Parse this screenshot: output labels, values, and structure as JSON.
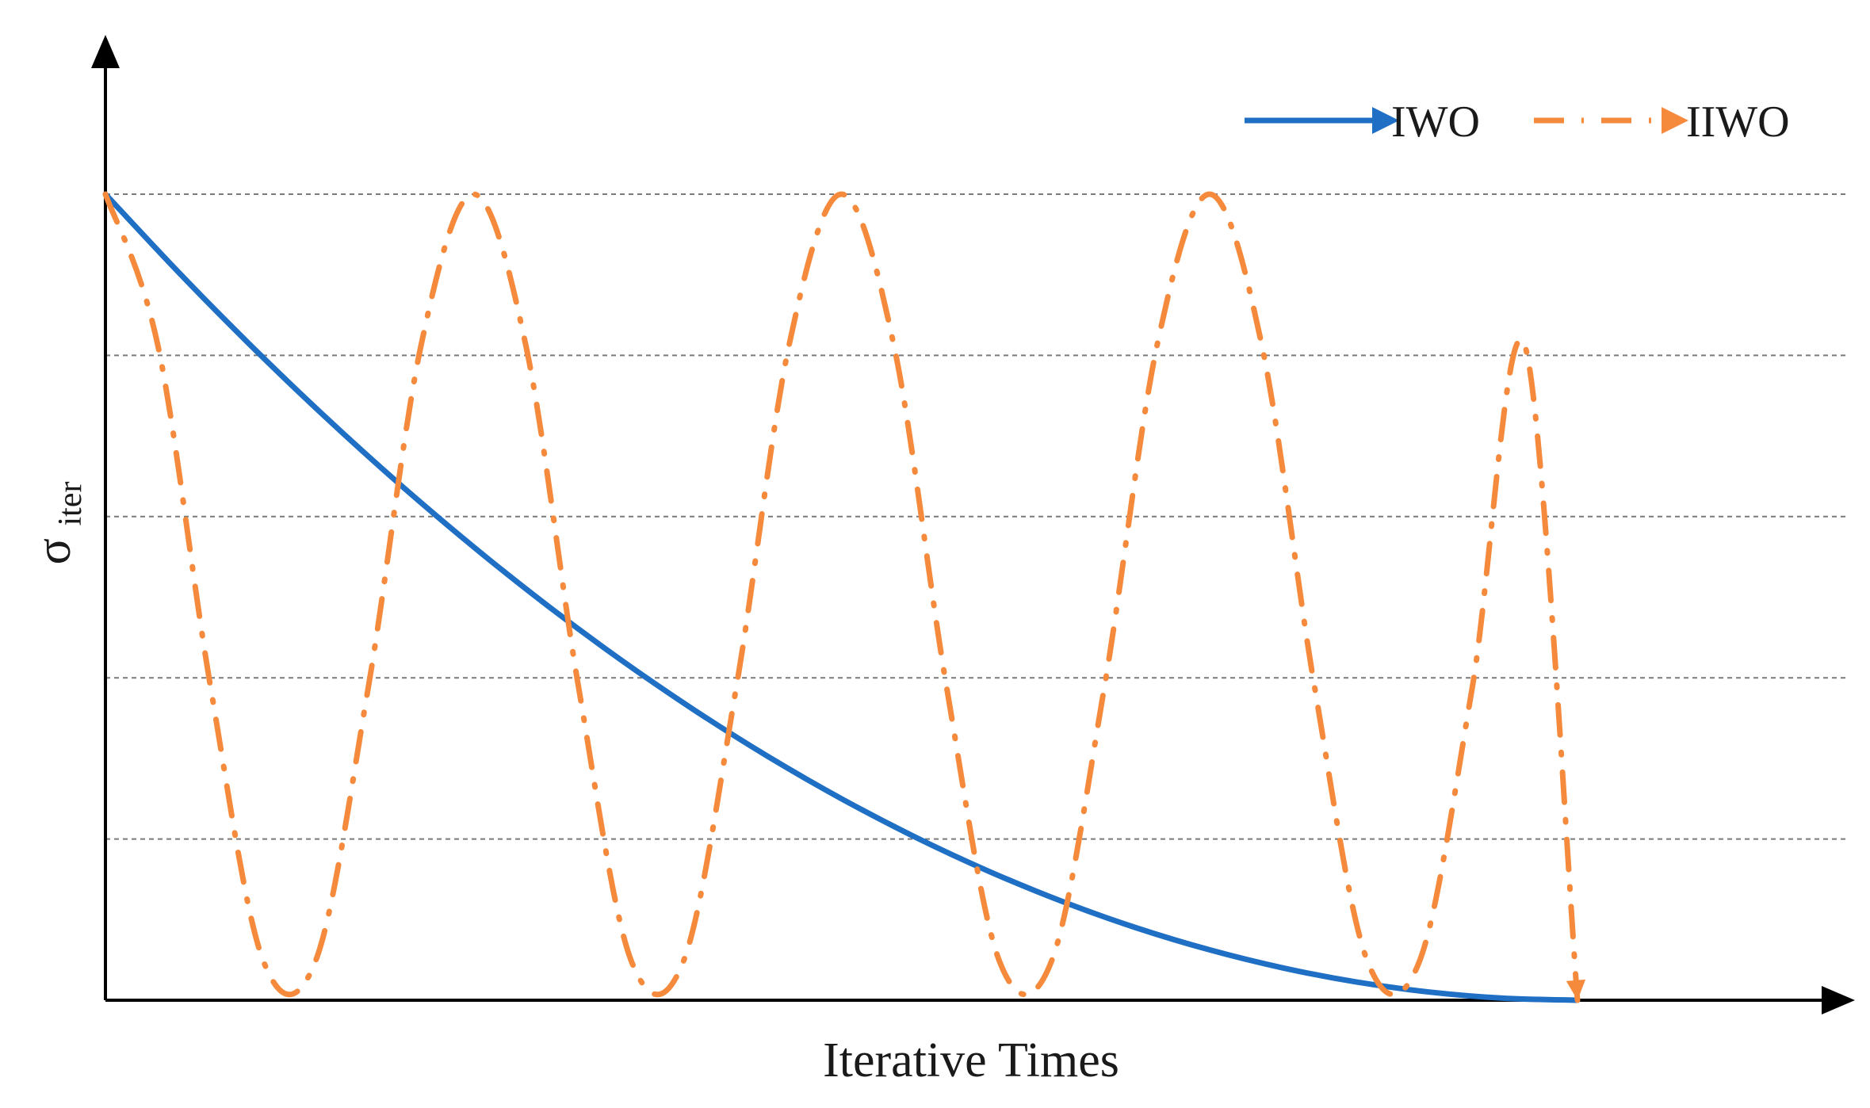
{
  "chart_data": {
    "type": "line",
    "title": "",
    "xlabel": "Iterative Times",
    "ylabel_main": "σ",
    "ylabel_sub": "iter",
    "xlim": [
      0,
      1
    ],
    "ylim": [
      0,
      1
    ],
    "grid": "horizontal dashed",
    "legend_position": "top-right",
    "series": [
      {
        "name": "IWO",
        "color": "#1f6fc4",
        "style": "solid",
        "x": [
          0,
          0.05,
          0.1,
          0.15,
          0.2,
          0.25,
          0.3,
          0.35,
          0.4,
          0.45,
          0.5,
          0.55,
          0.6,
          0.65,
          0.7,
          0.75,
          0.8,
          0.85,
          0.9,
          0.95,
          1.0
        ],
        "y": [
          1.0,
          0.9025,
          0.81,
          0.7225,
          0.64,
          0.5625,
          0.49,
          0.4225,
          0.36,
          0.3025,
          0.25,
          0.2025,
          0.16,
          0.1225,
          0.09,
          0.0625,
          0.04,
          0.0225,
          0.01,
          0.0025,
          0.0
        ]
      },
      {
        "name": "IIWO",
        "color": "#f58a3c",
        "style": "dash-dot",
        "x": [
          0,
          0.0357,
          0.0714,
          0.1071,
          0.1429,
          0.1786,
          0.2143,
          0.25,
          0.2857,
          0.3214,
          0.3571,
          0.3929,
          0.4286,
          0.4643,
          0.5,
          0.5357,
          0.5714,
          0.6071,
          0.6429,
          0.6786,
          0.7143,
          0.75,
          0.7857,
          0.8214,
          0.8571,
          0.8929,
          0.9286,
          0.9643,
          1.0
        ],
        "y": [
          1.0,
          0.8117,
          0.3887,
          0.0495,
          0.0495,
          0.3887,
          0.8117,
          1.0,
          0.8117,
          0.3887,
          0.0495,
          0.0495,
          0.3887,
          0.8117,
          1.0,
          0.8117,
          0.3887,
          0.0495,
          0.0495,
          0.3887,
          0.8117,
          1.0,
          0.8117,
          0.3887,
          0.0495,
          0.0495,
          0.3887,
          0.8117,
          0.0
        ]
      }
    ]
  }
}
